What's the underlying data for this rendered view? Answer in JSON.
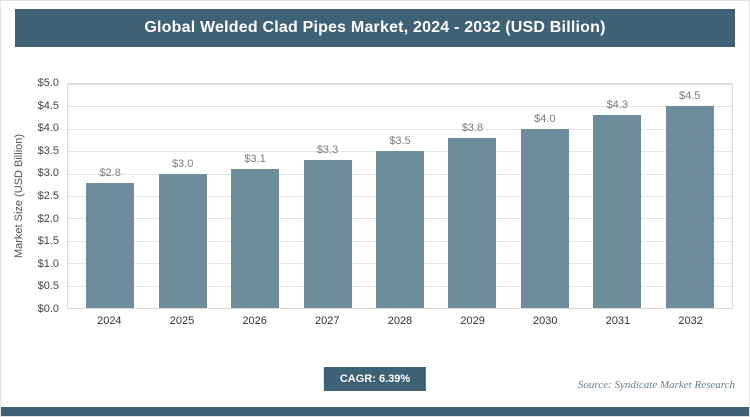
{
  "header": {
    "title": "Global Welded Clad Pipes Market, 2024 - 2032 (USD Billion)"
  },
  "chart_data": {
    "type": "bar",
    "title": "Global Welded Clad Pipes Market, 2024 - 2032 (USD Billion)",
    "categories": [
      "2024",
      "2025",
      "2026",
      "2027",
      "2028",
      "2029",
      "2030",
      "2031",
      "2032"
    ],
    "values": [
      2.8,
      3.0,
      3.1,
      3.3,
      3.5,
      3.8,
      4.0,
      4.3,
      4.5
    ],
    "value_labels": [
      "$2.8",
      "$3.0",
      "$3.1",
      "$3.3",
      "$3.5",
      "$3.8",
      "$4.0",
      "$4.3",
      "$4.5"
    ],
    "xlabel": "",
    "ylabel": "Market Size (USD Billion)",
    "ylim": [
      0,
      5.0
    ],
    "ytick_step": 0.5,
    "ytick_labels": [
      "$0.0",
      "$0.5",
      "$1.0",
      "$1.5",
      "$2.0",
      "$2.5",
      "$3.0",
      "$3.5",
      "$4.0",
      "$4.5",
      "$5.0"
    ],
    "grid": true,
    "legend": "none",
    "bar_color": "#6d8d9d"
  },
  "footer": {
    "cagr_label": "CAGR: 6.39%",
    "source": "Source: Syndicate Market Research"
  },
  "colors": {
    "accent": "#3e6175",
    "bar": "#6d8d9d",
    "gridline": "#e6e6e6"
  }
}
